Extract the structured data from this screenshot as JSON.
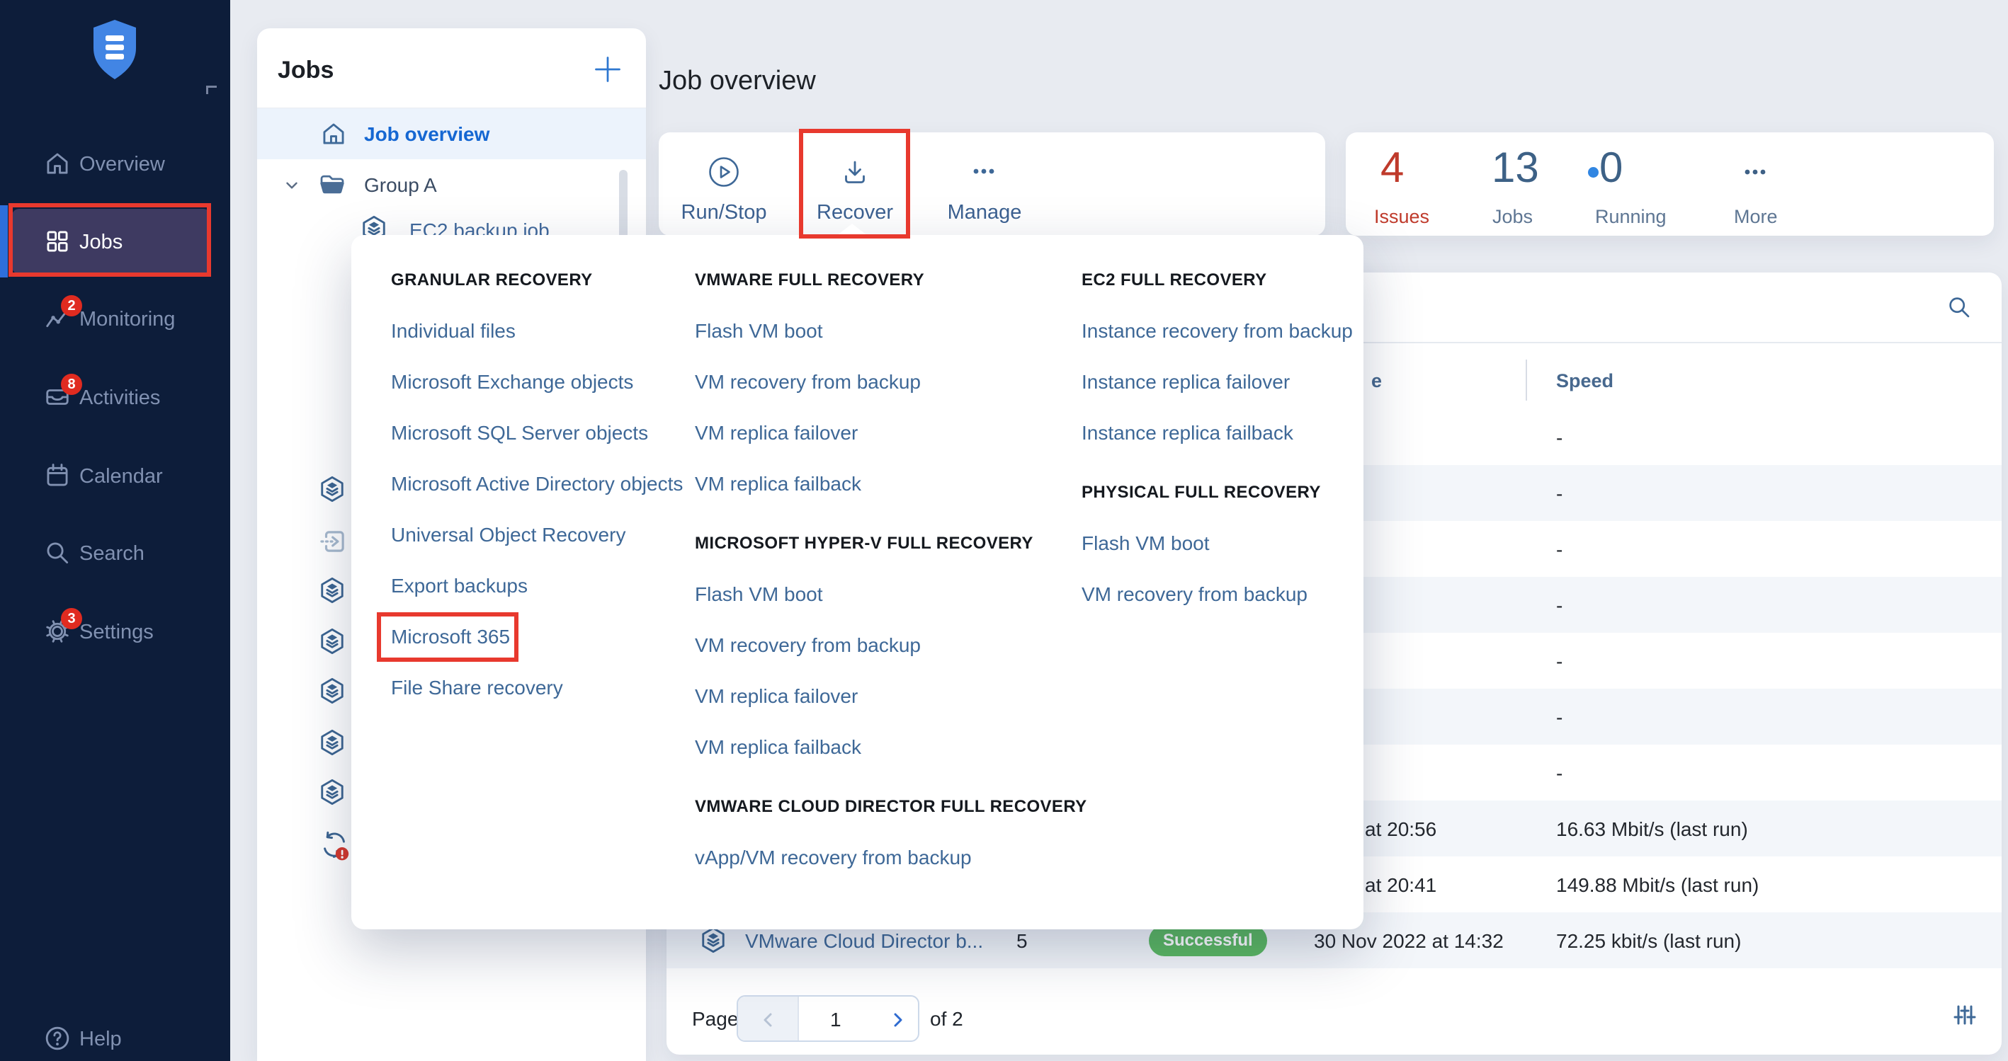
{
  "colors": {
    "annotation_red": "#e8392e",
    "active_link_blue": "#1567d2",
    "menu_link_blue": "#3e6897",
    "badge_red": "#e02b20",
    "success_green": "#5cb961",
    "issues_red": "#bf3a2b",
    "sidebar_bg": "#0d1d3a",
    "accent_blue": "#2e6fdb"
  },
  "sidebar": {
    "logo_icon": "shield-logo-icon",
    "items": [
      {
        "id": "overview",
        "label": "Overview",
        "icon": "home-icon"
      },
      {
        "id": "jobs",
        "label": "Jobs",
        "icon": "grid-icon",
        "active": true,
        "annotated": true
      },
      {
        "id": "monitoring",
        "label": "Monitoring",
        "icon": "monitoring-icon",
        "badge": "2"
      },
      {
        "id": "activities",
        "label": "Activities",
        "icon": "activities-icon",
        "badge": "8"
      },
      {
        "id": "calendar",
        "label": "Calendar",
        "icon": "calendar-icon"
      },
      {
        "id": "search",
        "label": "Search",
        "icon": "search-icon"
      },
      {
        "id": "settings",
        "label": "Settings",
        "icon": "gear-icon",
        "badge": "3"
      }
    ],
    "help": {
      "label": "Help",
      "icon": "help-icon"
    }
  },
  "jobs_panel": {
    "title": "Jobs",
    "add_icon": "plus-icon",
    "items": [
      {
        "label": "Job overview",
        "icon": "house-icon",
        "active": true
      },
      {
        "label": "Group A",
        "icon": "folder-icon",
        "expanded": true
      },
      {
        "label": "EC2 backup job",
        "icon": "backup-job-icon",
        "partial": true
      }
    ],
    "tree_icons": [
      "backup-job",
      "replication-job",
      "backup-job",
      "backup-job",
      "backup-job",
      "backup-job",
      "backup-job",
      "recovery-error"
    ]
  },
  "header": {
    "title": "Job overview"
  },
  "actions": [
    {
      "label": "Run/Stop",
      "icon": "play-circle-icon"
    },
    {
      "label": "Recover",
      "icon": "download-icon",
      "annotated": true
    },
    {
      "label": "Manage",
      "icon": "ellipsis-icon"
    }
  ],
  "stats": [
    {
      "value": "4",
      "label": "Issues",
      "variant": "issues"
    },
    {
      "value": "13",
      "label": "Jobs",
      "variant": "default"
    },
    {
      "value": "0",
      "label": "Running",
      "variant": "running",
      "dot": true
    },
    {
      "value": "",
      "label": "More",
      "variant": "more",
      "icon": "ellipsis-icon"
    }
  ],
  "recover_menu": {
    "columns": [
      {
        "sections": [
          {
            "title": "GRANULAR RECOVERY",
            "items": [
              {
                "label": "Individual files"
              },
              {
                "label": "Microsoft Exchange objects"
              },
              {
                "label": "Microsoft SQL Server objects"
              },
              {
                "label": "Microsoft Active Directory objects"
              },
              {
                "label": "Universal Object Recovery"
              },
              {
                "label": "Export backups"
              },
              {
                "label": "Microsoft 365",
                "annotated": true
              },
              {
                "label": "File Share recovery"
              }
            ]
          }
        ]
      },
      {
        "sections": [
          {
            "title": "VMWARE FULL RECOVERY",
            "items": [
              {
                "label": "Flash VM boot"
              },
              {
                "label": "VM recovery from backup"
              },
              {
                "label": "VM replica failover"
              },
              {
                "label": "VM replica failback"
              }
            ]
          },
          {
            "title": "MICROSOFT HYPER-V FULL RECOVERY",
            "items": [
              {
                "label": "Flash VM boot"
              },
              {
                "label": "VM recovery from backup"
              },
              {
                "label": "VM replica failover"
              },
              {
                "label": "VM replica failback"
              }
            ]
          },
          {
            "title": "VMWARE CLOUD DIRECTOR FULL RECOVERY",
            "items": [
              {
                "label": "vApp/VM recovery from backup"
              }
            ]
          }
        ]
      },
      {
        "sections": [
          {
            "title": "EC2 FULL RECOVERY",
            "items": [
              {
                "label": "Instance recovery from backup"
              },
              {
                "label": "Instance replica failover"
              },
              {
                "label": "Instance replica failback"
              }
            ]
          },
          {
            "title": "PHYSICAL FULL RECOVERY",
            "items": [
              {
                "label": "Flash VM boot"
              },
              {
                "label": "VM recovery from backup"
              }
            ]
          }
        ]
      }
    ]
  },
  "table": {
    "search_icon": "search-icon",
    "headers": [
      {
        "label": "e",
        "truncated": true
      },
      {
        "label": "Speed"
      }
    ],
    "rows": [
      {
        "speed": "-"
      },
      {
        "speed": "-"
      },
      {
        "speed": "-"
      },
      {
        "speed": "-"
      },
      {
        "speed": "-"
      },
      {
        "speed": "-"
      },
      {
        "speed": "-"
      },
      {
        "date": "at 20:56",
        "date_fragment": true,
        "speed": "16.63 Mbit/s (last run)"
      },
      {
        "date": "at 20:41",
        "date_fragment": true,
        "speed": "149.88 Mbit/s (last run)"
      },
      {
        "name": "VMware Cloud Director b...",
        "icon": "backup-job",
        "count": "5",
        "status": "Successful",
        "date": "30 Nov 2022 at 14:32",
        "speed": "72.25 kbit/s (last run)"
      }
    ],
    "pagination": {
      "page_label": "Page",
      "current": "1",
      "of_label": "of 2"
    }
  }
}
